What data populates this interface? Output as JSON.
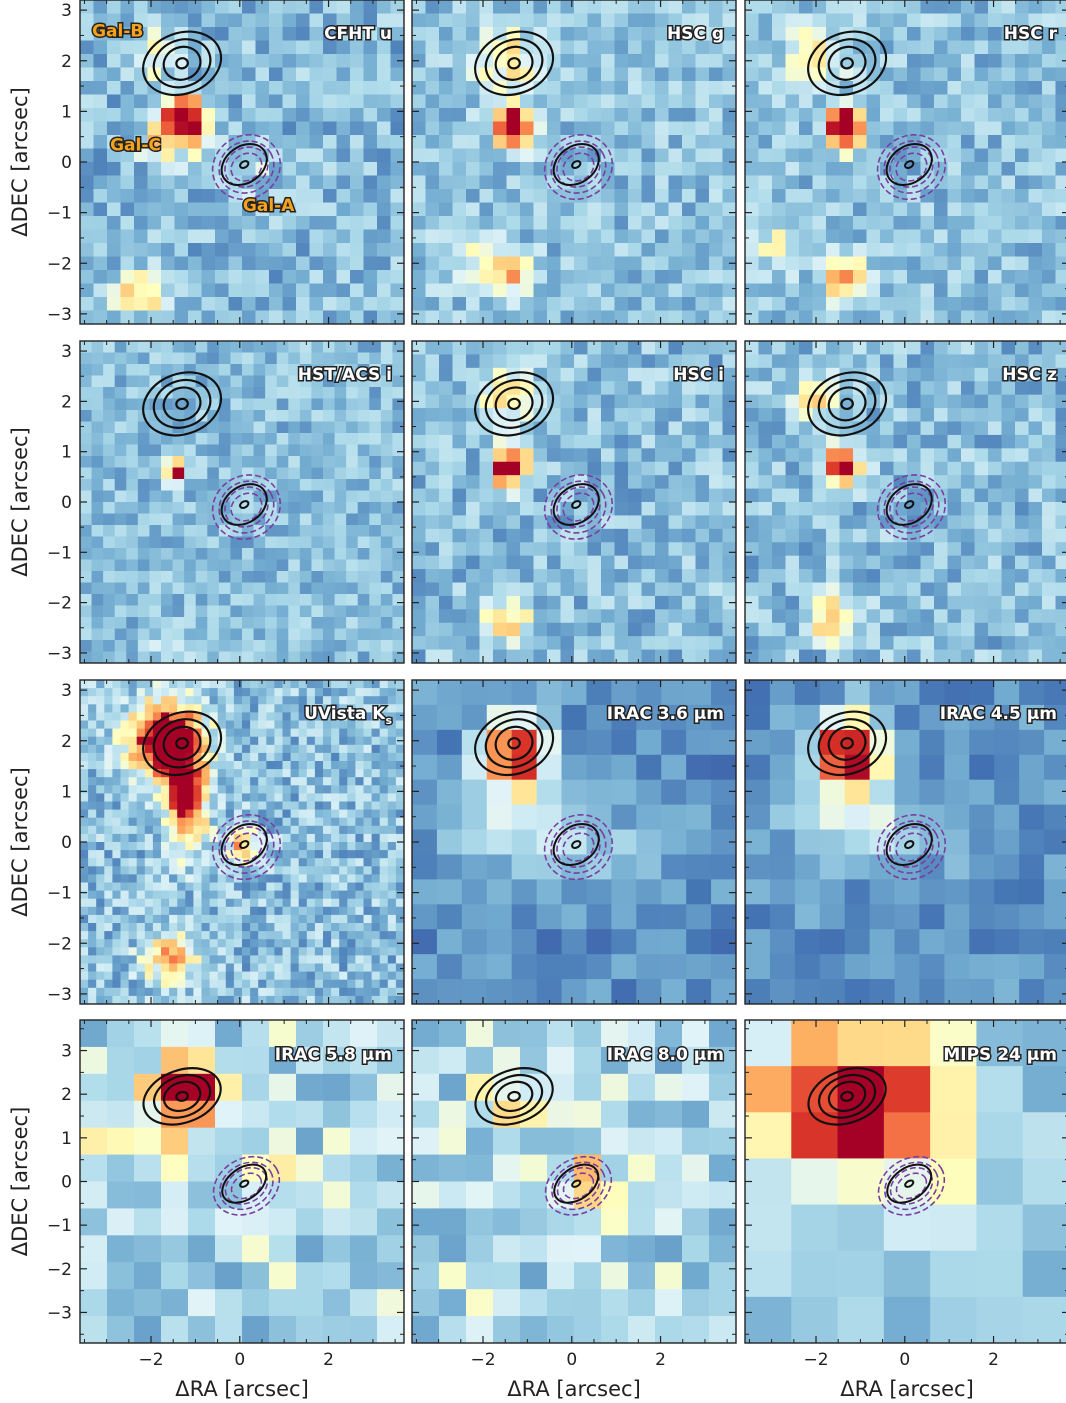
{
  "figure": {
    "y_axis_label": "ΔDEC [arcsec]",
    "x_axis_label": "ΔRA [arcsec]",
    "y_ticks_rows_1_3": [
      "3",
      "2",
      "1",
      "0",
      "−1",
      "−2",
      "−3"
    ],
    "y_ticks_row_4": [
      "3",
      "2",
      "1",
      "0",
      "−1",
      "−2",
      "−3"
    ],
    "x_ticks": [
      "−2",
      "0",
      "2"
    ],
    "galaxy_labels": [
      "Gal-B",
      "Gal-C",
      "Gal-A"
    ],
    "colors": {
      "label_fill": "#f7a21b",
      "contour_black": "#111111",
      "contour_purple": "#7a3ea0",
      "cmap_low": "#313695",
      "cmap_mid": "#ffffbf",
      "cmap_high": "#a50026"
    }
  },
  "panels": [
    {
      "band": "CFHT u"
    },
    {
      "band": "HSC g"
    },
    {
      "band": "HSC r"
    },
    {
      "band": "HST/ACS i"
    },
    {
      "band": "HSC i"
    },
    {
      "band": "HSC z"
    },
    {
      "band": "UVista K",
      "band_sub": "s"
    },
    {
      "band": "IRAC 3.6 µm"
    },
    {
      "band": "IRAC 4.5 µm"
    },
    {
      "band": "IRAC 5.8 µm"
    },
    {
      "band": "IRAC 8.0 µm"
    },
    {
      "band": "MIPS 24 µm"
    }
  ]
}
